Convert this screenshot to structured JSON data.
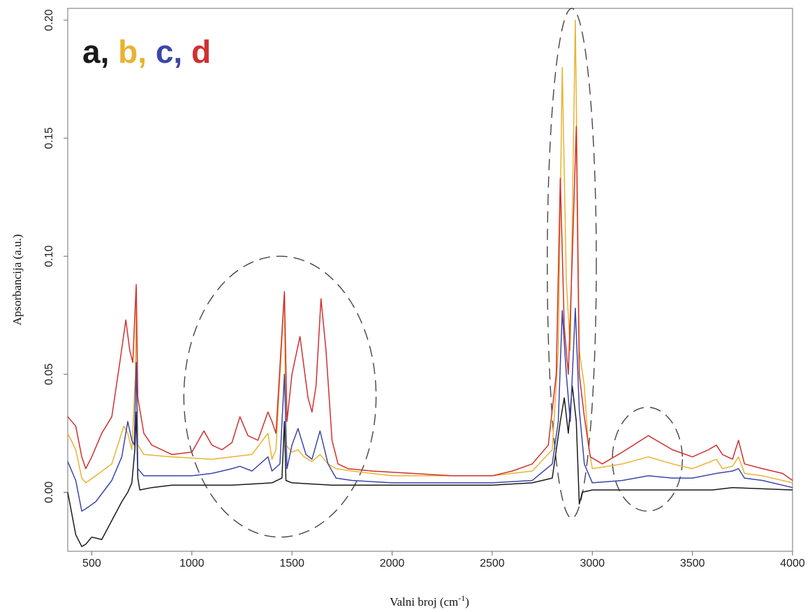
{
  "chart_data": {
    "type": "line",
    "xlabel": "Valni broj (cm",
    "xlabel_sup": "-1",
    "xlabel_end": ")",
    "ylabel": "Apsorbancija (a.u.)",
    "xlim": [
      380,
      4000
    ],
    "ylim": [
      -0.025,
      0.205
    ],
    "x_ticks": [
      500,
      1000,
      1500,
      2000,
      2500,
      3000,
      3500,
      4000
    ],
    "y_ticks": [
      0.0,
      0.05,
      0.1,
      0.15,
      0.2
    ],
    "y_tick_labels": [
      "0.00",
      "0.05",
      "0.10",
      "0.15",
      "0.20"
    ],
    "legend": [
      {
        "letter": "a,",
        "color": "#1a1a1a"
      },
      {
        "letter": "b,",
        "color": "#e8b330"
      },
      {
        "letter": "c,",
        "color": "#3b46a8"
      },
      {
        "letter": "d",
        "color": "#d03030"
      }
    ],
    "annotations": [
      {
        "type": "dashed-ellipse",
        "x_range": [
          960,
          1920
        ],
        "y_range": [
          -0.019,
          0.1
        ]
      },
      {
        "type": "dashed-ellipse",
        "x_range": [
          2775,
          3020
        ],
        "y_range": [
          -0.011,
          0.205
        ]
      },
      {
        "type": "dashed-ellipse",
        "x_range": [
          3100,
          3450
        ],
        "y_range": [
          -0.008,
          0.036
        ]
      }
    ],
    "series": [
      {
        "color": "#1a1a1a",
        "x": [
          380,
          420,
          450,
          470,
          500,
          550,
          600,
          650,
          680,
          700,
          715,
          722,
          730,
          740,
          800,
          900,
          1000,
          1200,
          1400,
          1450,
          1462,
          1470,
          1500,
          1700,
          2000,
          2500,
          2700,
          2800,
          2840,
          2860,
          2880,
          2900,
          2920,
          2935,
          2950,
          3000,
          3500,
          3600,
          3700,
          4000
        ],
        "y": [
          0.0,
          -0.018,
          -0.023,
          -0.022,
          -0.019,
          -0.02,
          -0.012,
          -0.004,
          0.0,
          0.004,
          0.018,
          0.034,
          0.006,
          0.001,
          0.002,
          0.003,
          0.003,
          0.003,
          0.004,
          0.006,
          0.03,
          0.005,
          0.004,
          0.003,
          0.003,
          0.003,
          0.004,
          0.006,
          0.03,
          0.04,
          0.025,
          0.045,
          0.03,
          -0.005,
          0.0,
          0.001,
          0.001,
          0.001,
          0.002,
          0.001
        ]
      },
      {
        "color": "#e8b330",
        "x": [
          380,
          420,
          450,
          470,
          520,
          600,
          660,
          680,
          700,
          718,
          722,
          730,
          760,
          900,
          1100,
          1300,
          1380,
          1400,
          1420,
          1462,
          1470,
          1500,
          1530,
          1560,
          1600,
          1640,
          1680,
          1720,
          1800,
          2000,
          2500,
          2700,
          2800,
          2830,
          2850,
          2870,
          2890,
          2915,
          2935,
          2960,
          2980,
          3000,
          3150,
          3280,
          3400,
          3500,
          3620,
          3650,
          3700,
          3730,
          3760,
          3850,
          4000
        ],
        "y": [
          0.025,
          0.018,
          0.006,
          0.004,
          0.007,
          0.012,
          0.028,
          0.025,
          0.018,
          0.05,
          0.082,
          0.02,
          0.016,
          0.015,
          0.014,
          0.016,
          0.025,
          0.014,
          0.018,
          0.084,
          0.02,
          0.017,
          0.018,
          0.015,
          0.013,
          0.016,
          0.012,
          0.01,
          0.009,
          0.007,
          0.007,
          0.009,
          0.018,
          0.06,
          0.18,
          0.09,
          0.06,
          0.2,
          0.06,
          0.045,
          0.02,
          0.01,
          0.012,
          0.015,
          0.012,
          0.01,
          0.014,
          0.01,
          0.011,
          0.015,
          0.008,
          0.007,
          0.004
        ]
      },
      {
        "color": "#3b46a8",
        "x": [
          380,
          420,
          450,
          470,
          520,
          600,
          650,
          680,
          700,
          712,
          722,
          730,
          760,
          900,
          1000,
          1100,
          1200,
          1240,
          1300,
          1380,
          1400,
          1440,
          1462,
          1475,
          1500,
          1530,
          1570,
          1600,
          1640,
          1680,
          1720,
          1800,
          2000,
          2500,
          2700,
          2800,
          2830,
          2850,
          2870,
          2890,
          2915,
          2935,
          2960,
          2980,
          3000,
          3150,
          3280,
          3400,
          3500,
          3620,
          3700,
          3730,
          3760,
          3850,
          4000
        ],
        "y": [
          0.013,
          0.005,
          -0.008,
          -0.007,
          -0.004,
          0.005,
          0.015,
          0.03,
          0.022,
          0.02,
          0.055,
          0.01,
          0.007,
          0.007,
          0.007,
          0.008,
          0.01,
          0.011,
          0.009,
          0.015,
          0.009,
          0.012,
          0.05,
          0.01,
          0.02,
          0.027,
          0.016,
          0.014,
          0.026,
          0.012,
          0.006,
          0.005,
          0.004,
          0.004,
          0.005,
          0.012,
          0.03,
          0.077,
          0.05,
          0.03,
          0.078,
          0.035,
          0.012,
          0.008,
          0.004,
          0.005,
          0.007,
          0.006,
          0.006,
          0.008,
          0.009,
          0.01,
          0.006,
          0.005,
          0.002
        ]
      },
      {
        "color": "#d03030",
        "x": [
          380,
          420,
          450,
          470,
          500,
          550,
          600,
          640,
          670,
          690,
          705,
          715,
          722,
          730,
          760,
          800,
          900,
          1000,
          1060,
          1100,
          1150,
          1200,
          1240,
          1280,
          1330,
          1380,
          1400,
          1420,
          1462,
          1475,
          1500,
          1540,
          1580,
          1600,
          1620,
          1645,
          1670,
          1700,
          1730,
          1780,
          1900,
          2100,
          2300,
          2500,
          2600,
          2700,
          2780,
          2820,
          2840,
          2860,
          2880,
          2900,
          2920,
          2935,
          2960,
          2990,
          3050,
          3150,
          3280,
          3400,
          3500,
          3580,
          3620,
          3650,
          3700,
          3730,
          3760,
          3850,
          3950,
          4000
        ],
        "y": [
          0.032,
          0.028,
          0.015,
          0.01,
          0.015,
          0.025,
          0.032,
          0.055,
          0.073,
          0.06,
          0.055,
          0.075,
          0.088,
          0.04,
          0.025,
          0.02,
          0.016,
          0.017,
          0.026,
          0.02,
          0.018,
          0.021,
          0.032,
          0.024,
          0.022,
          0.034,
          0.03,
          0.025,
          0.085,
          0.03,
          0.05,
          0.066,
          0.04,
          0.034,
          0.045,
          0.082,
          0.06,
          0.022,
          0.012,
          0.01,
          0.009,
          0.008,
          0.007,
          0.007,
          0.009,
          0.012,
          0.02,
          0.05,
          0.133,
          0.07,
          0.05,
          0.1,
          0.155,
          0.05,
          0.032,
          0.015,
          0.012,
          0.017,
          0.024,
          0.018,
          0.015,
          0.018,
          0.02,
          0.016,
          0.014,
          0.022,
          0.012,
          0.01,
          0.008,
          0.005
        ]
      }
    ]
  }
}
